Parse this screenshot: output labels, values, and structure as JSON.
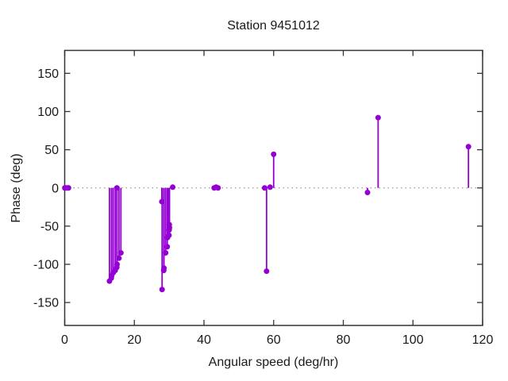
{
  "chart_data": {
    "type": "scatter",
    "style": "impulses-with-points",
    "title": "Station 9451012",
    "xlabel": "Angular speed (deg/hr)",
    "ylabel": "Phase (deg)",
    "xlim": [
      0,
      120
    ],
    "ylim": [
      -180,
      180
    ],
    "xticks": [
      0,
      20,
      40,
      60,
      80,
      100,
      120
    ],
    "yticks": [
      -150,
      -100,
      -50,
      0,
      50,
      100,
      150
    ],
    "grid": "off",
    "legend": "none",
    "zero_axis": "dotted",
    "colors": {
      "marker": "#9400d3",
      "axis": "#333333",
      "zero_line": "#999999",
      "background": "#ffffff"
    },
    "points": [
      [
        0.041,
        0
      ],
      [
        0.082,
        0
      ],
      [
        0.544,
        0
      ],
      [
        1.016,
        0
      ],
      [
        1.098,
        0
      ],
      [
        12.854,
        -122
      ],
      [
        13.399,
        -118
      ],
      [
        13.472,
        -115
      ],
      [
        13.943,
        -111
      ],
      [
        14.497,
        -108
      ],
      [
        14.959,
        -104
      ],
      [
        15.0,
        0
      ],
      [
        15.041,
        -100
      ],
      [
        15.585,
        -92
      ],
      [
        16.139,
        -85
      ],
      [
        27.895,
        -18
      ],
      [
        27.968,
        -133
      ],
      [
        28.44,
        -108
      ],
      [
        28.513,
        -105
      ],
      [
        28.984,
        -85
      ],
      [
        29.456,
        -77
      ],
      [
        29.528,
        -65
      ],
      [
        29.959,
        -62
      ],
      [
        30.0,
        -55
      ],
      [
        30.041,
        -48
      ],
      [
        30.082,
        -52
      ],
      [
        31.016,
        1
      ],
      [
        42.927,
        0
      ],
      [
        43.476,
        1
      ],
      [
        44.025,
        0
      ],
      [
        57.424,
        0
      ],
      [
        57.968,
        -109
      ],
      [
        58.984,
        1
      ],
      [
        60.0,
        44
      ],
      [
        86.952,
        -6
      ],
      [
        90.0,
        92
      ],
      [
        115.936,
        54
      ]
    ]
  }
}
